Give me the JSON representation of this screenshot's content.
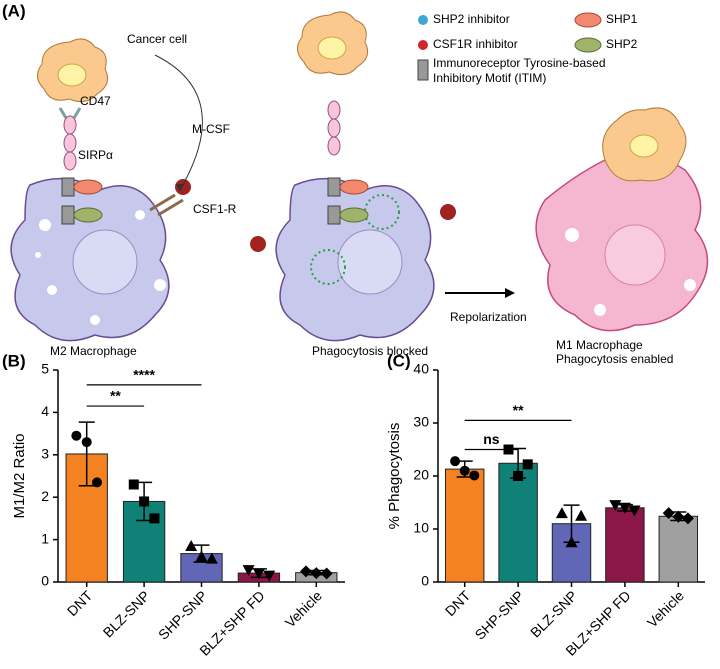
{
  "panel_labels": [
    "(A)",
    "(B)",
    "(C)"
  ],
  "diagram": {
    "cancer_cell": "Cancer cell",
    "cd47": "CD47",
    "sirpa": "SIRPα",
    "mcsf": "M-CSF",
    "csf1r": "CSF1-R",
    "m2": "M2 Macrophage",
    "blocked": "Phagocytosis blocked",
    "repolarization": "Repolarization",
    "m1": [
      "M1 Macrophage",
      "Phagocytosis enabled"
    ],
    "legend": {
      "shp2_inhibitor": "SHP2 inhibitor",
      "csf1r_inhibitor": "CSF1R inhibitor",
      "shp1": "SHP1",
      "shp2": "SHP2",
      "itim": [
        "Immunoreceptor Tyrosine-based",
        "Inhibitory Motif (ITIM)"
      ]
    }
  },
  "chart_data": [
    {
      "type": "bar",
      "ylabel": "M1/M2 Ratio",
      "categories": [
        "DNT",
        "BLZ-SNP",
        "SHP-SNP",
        "BLZ+SHP FD",
        "Vehicle"
      ],
      "values": [
        3.02,
        1.9,
        0.67,
        0.21,
        0.22
      ],
      "errors": [
        0.75,
        0.45,
        0.2,
        0.1,
        0.05
      ],
      "points": [
        [
          3.45,
          3.3,
          2.35
        ],
        [
          2.3,
          1.9,
          1.5
        ],
        [
          0.85,
          0.6,
          0.55
        ],
        [
          0.28,
          0.2,
          0.15
        ],
        [
          0.25,
          0.21,
          0.2
        ]
      ],
      "markers": [
        "circle",
        "square",
        "triangle",
        "triangle-down",
        "diamond"
      ],
      "colors": [
        "#f58220",
        "#0f8177",
        "#6166b7",
        "#8a1748",
        "#a0a0a0"
      ],
      "ylim": [
        0,
        5
      ],
      "yticks": [
        0,
        1,
        2,
        3,
        4,
        5
      ],
      "annotations": [
        {
          "label": "**",
          "between": [
            "DNT",
            "BLZ-SNP"
          ],
          "y": 4.15
        },
        {
          "label": "****",
          "between": [
            "DNT",
            "SHP-SNP"
          ],
          "y": 4.65
        }
      ]
    },
    {
      "type": "bar",
      "ylabel": "% Phagocytosis",
      "categories": [
        "DNT",
        "SHP-SNP",
        "BLZ-SNP",
        "BLZ+SHP FD",
        "Vehicle"
      ],
      "values": [
        21.3,
        22.4,
        11,
        14,
        12.4
      ],
      "errors": [
        1.5,
        2.8,
        3.5,
        0.6,
        0.8
      ],
      "points": [
        [
          22.8,
          21,
          20.1
        ],
        [
          25,
          20,
          22.2
        ],
        [
          13,
          7.5,
          12.5
        ],
        [
          14.5,
          14,
          13.5
        ],
        [
          13,
          12.3,
          12
        ]
      ],
      "markers": [
        "circle",
        "square",
        "triangle",
        "triangle-down",
        "diamond"
      ],
      "colors": [
        "#f58220",
        "#0f8177",
        "#6166b7",
        "#8a1748",
        "#a0a0a0"
      ],
      "ylim": [
        0,
        40
      ],
      "yticks": [
        0,
        10,
        20,
        30,
        40
      ],
      "annotations": [
        {
          "label": "ns",
          "between": [
            "DNT",
            "SHP-SNP"
          ],
          "y": 25
        },
        {
          "label": "**",
          "between": [
            "DNT",
            "BLZ-SNP"
          ],
          "y": 30.5
        }
      ]
    }
  ]
}
